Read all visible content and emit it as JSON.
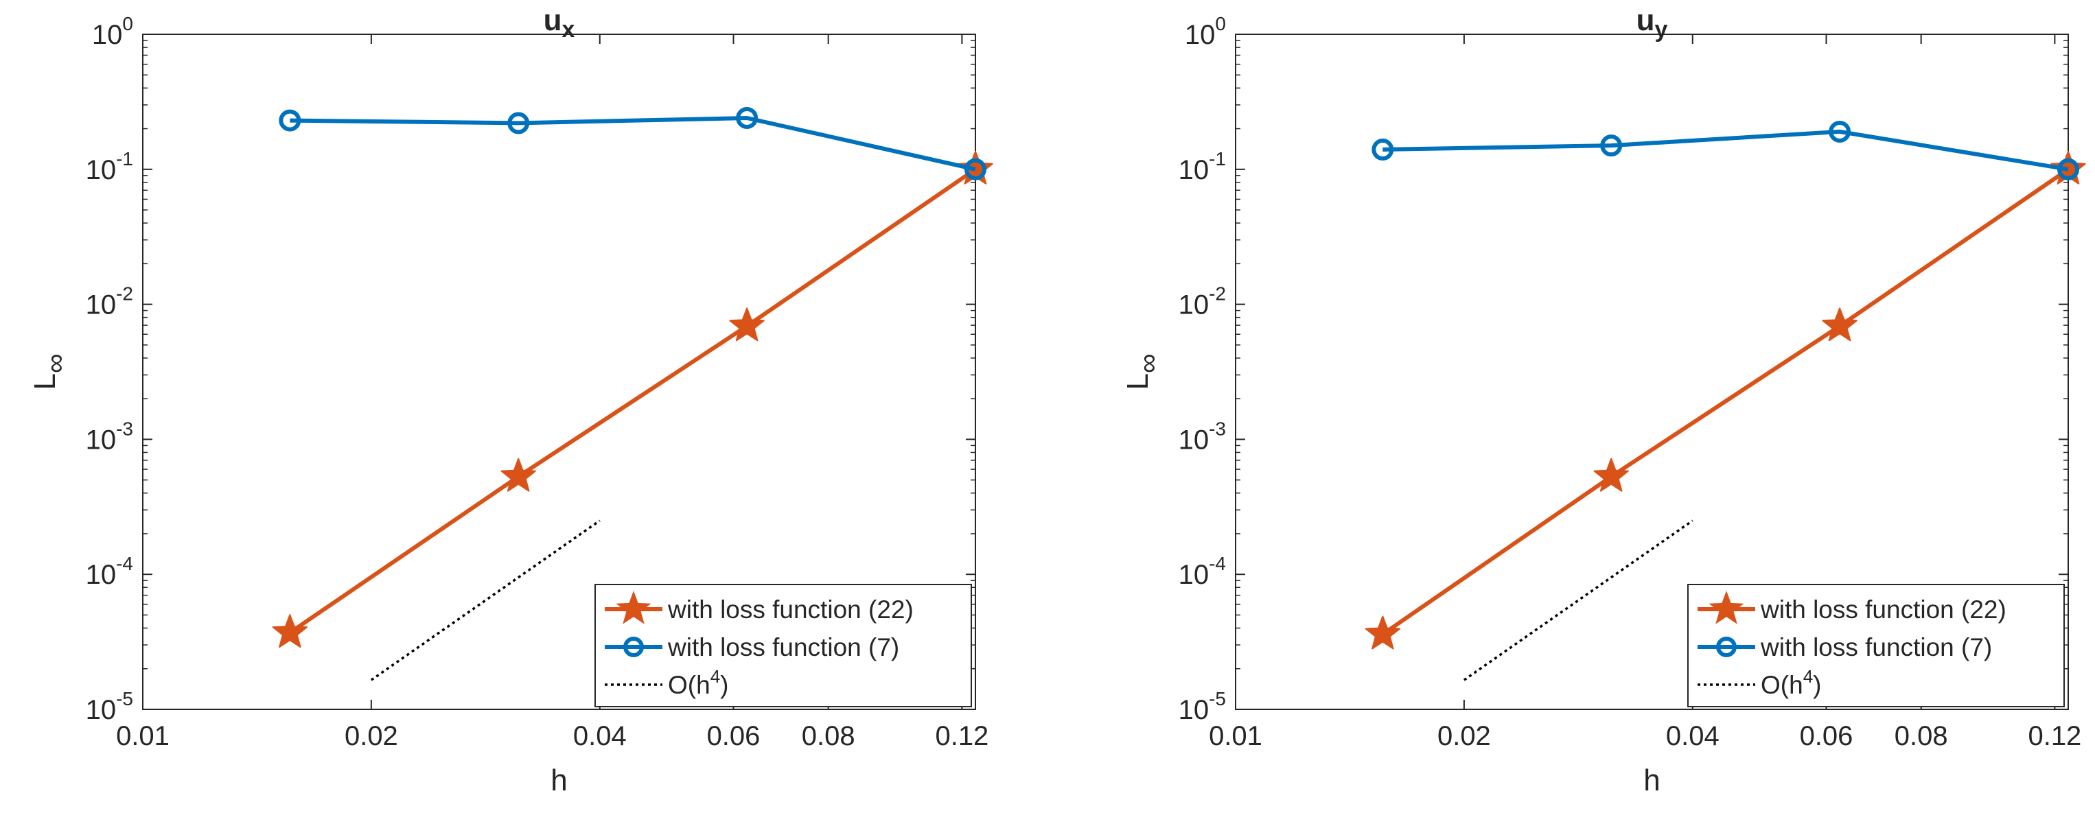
{
  "chart_data": [
    {
      "type": "line",
      "title_base": "u",
      "title_sub": "x",
      "xlabel": "h",
      "ylabel_base": "L",
      "ylabel_sub": "∞",
      "xscale": "log",
      "yscale": "log",
      "xlim": [
        0.01,
        0.125
      ],
      "ylim": [
        1e-05,
        1
      ],
      "xticks": [
        0.01,
        0.02,
        0.04,
        0.06,
        0.08,
        0.12
      ],
      "xtick_labels": [
        "0.01",
        "0.02",
        "0.04",
        "0.06",
        "0.08",
        "0.12"
      ],
      "yticks": [
        1e-05,
        0.0001,
        0.001,
        0.01,
        0.1,
        1
      ],
      "ytick_bases": [
        "10",
        "10",
        "10",
        "10",
        "10",
        "10"
      ],
      "ytick_exps": [
        "-5",
        "-4",
        "-3",
        "-2",
        "-1",
        "0"
      ],
      "legend_position": "bottom-right",
      "series": [
        {
          "name": "with loss function (22)",
          "color": "#D95319",
          "marker": "star",
          "style": "solid",
          "x": [
            0.015625,
            0.03125,
            0.0625,
            0.125
          ],
          "values": [
            3.7e-05,
            0.00053,
            0.0069,
            0.1
          ]
        },
        {
          "name": "with loss function (7)",
          "color": "#0072BD",
          "marker": "circle",
          "style": "solid",
          "x": [
            0.015625,
            0.03125,
            0.0625,
            0.125
          ],
          "values": [
            0.23,
            0.22,
            0.24,
            0.1
          ]
        },
        {
          "name_base": "O(h",
          "name_exp": "4",
          "name_tail": ")",
          "color": "#000000",
          "marker": "none",
          "style": "dotted",
          "x": [
            0.02,
            0.04
          ],
          "values": [
            1.65e-05,
            0.00025
          ]
        }
      ]
    },
    {
      "type": "line",
      "title_base": "u",
      "title_sub": "y",
      "xlabel": "h",
      "ylabel_base": "L",
      "ylabel_sub": "∞",
      "xscale": "log",
      "yscale": "log",
      "xlim": [
        0.01,
        0.125
      ],
      "ylim": [
        1e-05,
        1
      ],
      "xticks": [
        0.01,
        0.02,
        0.04,
        0.06,
        0.08,
        0.12
      ],
      "xtick_labels": [
        "0.01",
        "0.02",
        "0.04",
        "0.06",
        "0.08",
        "0.12"
      ],
      "yticks": [
        1e-05,
        0.0001,
        0.001,
        0.01,
        0.1,
        1
      ],
      "ytick_bases": [
        "10",
        "10",
        "10",
        "10",
        "10",
        "10"
      ],
      "ytick_exps": [
        "-5",
        "-4",
        "-3",
        "-2",
        "-1",
        "0"
      ],
      "legend_position": "bottom-right",
      "series": [
        {
          "name": "with loss function (22)",
          "color": "#D95319",
          "marker": "star",
          "style": "solid",
          "x": [
            0.015625,
            0.03125,
            0.0625,
            0.125
          ],
          "values": [
            3.6e-05,
            0.00053,
            0.0069,
            0.1
          ]
        },
        {
          "name": "with loss function (7)",
          "color": "#0072BD",
          "marker": "circle",
          "style": "solid",
          "x": [
            0.015625,
            0.03125,
            0.0625,
            0.125
          ],
          "values": [
            0.14,
            0.15,
            0.19,
            0.1
          ]
        },
        {
          "name_base": "O(h",
          "name_exp": "4",
          "name_tail": ")",
          "color": "#000000",
          "marker": "none",
          "style": "dotted",
          "x": [
            0.02,
            0.04
          ],
          "values": [
            1.65e-05,
            0.00025
          ]
        }
      ]
    }
  ]
}
